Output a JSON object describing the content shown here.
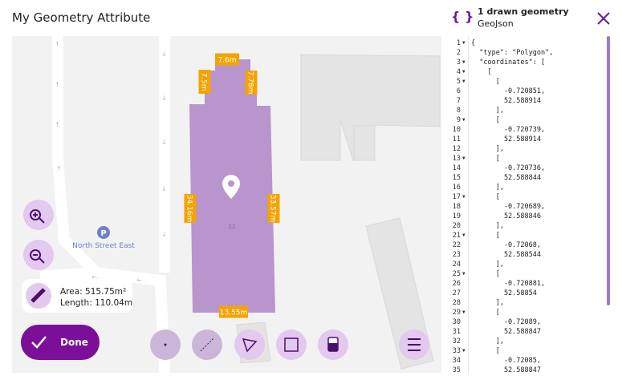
{
  "header": {
    "title": "My Geometry Attribute",
    "icon": "{ }",
    "count": "1 drawn geometry",
    "format": "GeoJson"
  },
  "map": {
    "dimensions": [
      "7.6m",
      "7.5m",
      "7.78m",
      "34.16m",
      "33.57m",
      "13.55m"
    ],
    "building_number": "22",
    "parking": "P",
    "place": "North Street East",
    "area": "Area: 515.75m²",
    "length": "Length: 110.04m",
    "done": "Done"
  },
  "code": {
    "lines": [
      {
        "n": 1,
        "text": "{",
        "fold": true
      },
      {
        "n": 2,
        "text": "  \"type\": \"Polygon\",",
        "fold": false
      },
      {
        "n": 3,
        "text": "  \"coordinates\": [",
        "fold": true
      },
      {
        "n": 4,
        "text": "    [",
        "fold": true
      },
      {
        "n": 5,
        "text": "      [",
        "fold": true
      },
      {
        "n": 6,
        "text": "        -0.720851,",
        "fold": false
      },
      {
        "n": 7,
        "text": "        52.588914",
        "fold": false
      },
      {
        "n": 8,
        "text": "      ],",
        "fold": false
      },
      {
        "n": 9,
        "text": "      [",
        "fold": true
      },
      {
        "n": 10,
        "text": "        -0.720739,",
        "fold": false
      },
      {
        "n": 11,
        "text": "        52.588914",
        "fold": false
      },
      {
        "n": 12,
        "text": "      ],",
        "fold": false
      },
      {
        "n": 13,
        "text": "      [",
        "fold": true
      },
      {
        "n": 14,
        "text": "        -0.720736,",
        "fold": false
      },
      {
        "n": 15,
        "text": "        52.588844",
        "fold": false
      },
      {
        "n": 16,
        "text": "      ],",
        "fold": false
      },
      {
        "n": 17,
        "text": "      [",
        "fold": true
      },
      {
        "n": 18,
        "text": "        -0.720689,",
        "fold": false
      },
      {
        "n": 19,
        "text": "        52.588846",
        "fold": false
      },
      {
        "n": 20,
        "text": "      ],",
        "fold": false
      },
      {
        "n": 21,
        "text": "      [",
        "fold": true
      },
      {
        "n": 22,
        "text": "        -0.72068,",
        "fold": false
      },
      {
        "n": 23,
        "text": "        52.588544",
        "fold": false
      },
      {
        "n": 24,
        "text": "      ],",
        "fold": false
      },
      {
        "n": 25,
        "text": "      [",
        "fold": true
      },
      {
        "n": 26,
        "text": "        -0.720881,",
        "fold": false
      },
      {
        "n": 27,
        "text": "        52.58854",
        "fold": false
      },
      {
        "n": 28,
        "text": "      ],",
        "fold": false
      },
      {
        "n": 29,
        "text": "      [",
        "fold": true
      },
      {
        "n": 30,
        "text": "        -0.72089,",
        "fold": false
      },
      {
        "n": 31,
        "text": "        52.588847",
        "fold": false
      },
      {
        "n": 32,
        "text": "      ],",
        "fold": false
      },
      {
        "n": 33,
        "text": "      [",
        "fold": true
      },
      {
        "n": 34,
        "text": "        -0.72085,",
        "fold": false
      },
      {
        "n": 35,
        "text": "        52.588847",
        "fold": false
      }
    ]
  }
}
